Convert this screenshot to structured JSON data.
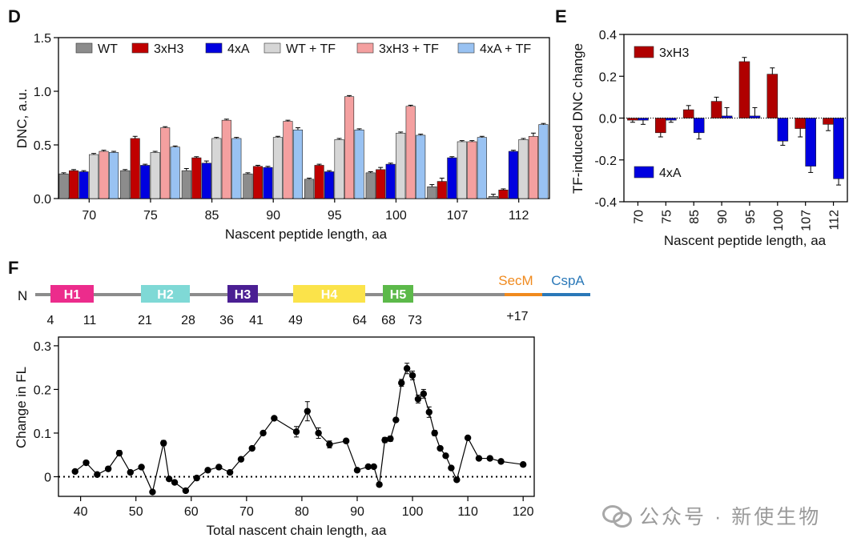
{
  "watermark": {
    "text": "公众号 · 新使生物"
  },
  "chart_data": [
    {
      "panel": "D",
      "type": "bar",
      "ylabel": "DNC, a.u.",
      "xlabel": "Nascent peptide length, aa",
      "ylim": [
        0,
        1.5
      ],
      "yticks": [
        "0.0",
        "0.5",
        "1.0",
        "1.5"
      ],
      "ytick_values": [
        0,
        0.5,
        1.0,
        1.5
      ],
      "categories": [
        "70",
        "75",
        "85",
        "90",
        "95",
        "100",
        "107",
        "112"
      ],
      "legend_position": "top",
      "series": [
        {
          "name": "WT",
          "color": "#8c8c8c",
          "values": [
            0.23,
            0.26,
            0.26,
            0.23,
            0.18,
            0.24,
            0.11,
            0.02
          ],
          "errors": [
            0.01,
            0.01,
            0.02,
            0.01,
            0.01,
            0.01,
            0.02,
            0.02
          ]
        },
        {
          "name": "3xH3",
          "color": "#c00000",
          "values": [
            0.26,
            0.56,
            0.38,
            0.3,
            0.31,
            0.27,
            0.16,
            0.08
          ],
          "errors": [
            0.01,
            0.02,
            0.01,
            0.01,
            0.01,
            0.02,
            0.03,
            0.01
          ]
        },
        {
          "name": "4xA",
          "color": "#0000e0",
          "values": [
            0.25,
            0.31,
            0.33,
            0.29,
            0.25,
            0.32,
            0.38,
            0.44
          ],
          "errors": [
            0.01,
            0.01,
            0.02,
            0.01,
            0.01,
            0.01,
            0.01,
            0.01
          ]
        },
        {
          "name": "WT + TF",
          "color": "#d6d6d6",
          "values": [
            0.41,
            0.43,
            0.56,
            0.57,
            0.55,
            0.61,
            0.53,
            0.55
          ],
          "errors": [
            0.01,
            0.01,
            0.01,
            0.01,
            0.01,
            0.01,
            0.01,
            0.01
          ]
        },
        {
          "name": "3xH3 + TF",
          "color": "#f4a0a0",
          "values": [
            0.44,
            0.66,
            0.73,
            0.72,
            0.95,
            0.86,
            0.53,
            0.58
          ],
          "errors": [
            0.01,
            0.01,
            0.01,
            0.01,
            0.01,
            0.01,
            0.01,
            0.03
          ]
        },
        {
          "name": "4xA + TF",
          "color": "#99c2f2",
          "values": [
            0.43,
            0.48,
            0.56,
            0.64,
            0.64,
            0.59,
            0.57,
            0.69
          ],
          "errors": [
            0.01,
            0.01,
            0.01,
            0.02,
            0.01,
            0.01,
            0.01,
            0.01
          ]
        }
      ]
    },
    {
      "panel": "E",
      "type": "bar",
      "ylabel": "TF-induced DNC change",
      "xlabel": "Nascent peptide length, aa",
      "ylim": [
        -0.4,
        0.4
      ],
      "yticks": [
        "0.4",
        "0.2",
        "0.0",
        "-0.2",
        "-0.4"
      ],
      "ytick_values": [
        0.4,
        0.2,
        0.0,
        -0.2,
        -0.4
      ],
      "categories": [
        "70",
        "75",
        "85",
        "90",
        "95",
        "100",
        "107",
        "112"
      ],
      "series": [
        {
          "name": "3xH3",
          "color": "#b00000",
          "values": [
            -0.01,
            -0.07,
            0.04,
            0.08,
            0.27,
            0.21,
            -0.05,
            -0.03
          ],
          "errors": [
            0.01,
            0.02,
            0.02,
            0.02,
            0.02,
            0.03,
            0.04,
            0.03
          ]
        },
        {
          "name": "4xA",
          "color": "#0000e0",
          "values": [
            -0.01,
            -0.01,
            -0.07,
            0.01,
            0.01,
            -0.11,
            -0.23,
            -0.29
          ],
          "errors": [
            0.02,
            0.01,
            0.03,
            0.04,
            0.04,
            0.02,
            0.03,
            0.03
          ]
        }
      ]
    },
    {
      "panel": "F",
      "type": "line",
      "ylabel": "Change in FL",
      "xlabel": "Total nascent chain length, aa",
      "xlim": [
        36,
        122
      ],
      "ylim": [
        -0.045,
        0.32
      ],
      "xticks": [
        "40",
        "50",
        "60",
        "70",
        "80",
        "90",
        "100",
        "110",
        "120"
      ],
      "xtick_values": [
        40,
        50,
        60,
        70,
        80,
        90,
        100,
        110,
        120
      ],
      "yticks": [
        "0",
        "0.1",
        "0.2",
        "0.3"
      ],
      "ytick_values": [
        0,
        0.1,
        0.2,
        0.3
      ],
      "reference_line": 0,
      "x": [
        39,
        41,
        43,
        45,
        47,
        49,
        51,
        53,
        55,
        56,
        57,
        59,
        61,
        63,
        65,
        67,
        69,
        71,
        73,
        75,
        79,
        81,
        83,
        85,
        88,
        90,
        92,
        93,
        94,
        95,
        96,
        97,
        98,
        99,
        100,
        101,
        102,
        103,
        104,
        105,
        106,
        107,
        108,
        110,
        112,
        114,
        116,
        120
      ],
      "y": [
        0.012,
        0.032,
        0.005,
        0.018,
        0.054,
        0.01,
        0.022,
        -0.035,
        0.077,
        -0.005,
        -0.013,
        -0.032,
        -0.003,
        0.015,
        0.022,
        0.01,
        0.04,
        0.065,
        0.1,
        0.134,
        0.103,
        0.15,
        0.1,
        0.074,
        0.082,
        0.015,
        0.023,
        0.023,
        -0.018,
        0.084,
        0.087,
        0.13,
        0.215,
        0.248,
        0.232,
        0.178,
        0.19,
        0.148,
        0.1,
        0.065,
        0.048,
        0.02,
        -0.007,
        0.089,
        0.042,
        0.042,
        0.035,
        0.028
      ],
      "errors": [
        0.003,
        0.003,
        0.003,
        0.003,
        0.006,
        0.003,
        0.003,
        0.003,
        0.006,
        0.003,
        0.003,
        0.003,
        0.003,
        0.003,
        0.003,
        0.003,
        0.003,
        0.003,
        0.003,
        0.003,
        0.012,
        0.022,
        0.012,
        0.008,
        0.003,
        0.003,
        0.003,
        0.003,
        0.003,
        0.006,
        0.006,
        0.004,
        0.008,
        0.012,
        0.01,
        0.009,
        0.01,
        0.012,
        0.006,
        0.003,
        0.003,
        0.003,
        0.003,
        0.003,
        0.003,
        0.003,
        0.003,
        0.003
      ]
    }
  ],
  "panels": {
    "d_label": "D",
    "e_label": "E",
    "f_label": "F"
  },
  "domain_map": {
    "n_label": "N",
    "ticks": [
      "4",
      "11",
      "21",
      "28",
      "36",
      "41",
      "49",
      "64",
      "68",
      "73"
    ],
    "plus17_label": "+17",
    "helices": [
      {
        "label": "H1",
        "color": "#ec2c8c"
      },
      {
        "label": "H2",
        "color": "#7fd9d6"
      },
      {
        "label": "H3",
        "color": "#4b1f93"
      },
      {
        "label": "H4",
        "color": "#fbe34a"
      },
      {
        "label": "H5",
        "color": "#5cb94a"
      }
    ],
    "secm": {
      "label": "SecM",
      "color": "#f08a1e"
    },
    "cspa": {
      "label": "CspA",
      "color": "#2a78b8"
    }
  }
}
